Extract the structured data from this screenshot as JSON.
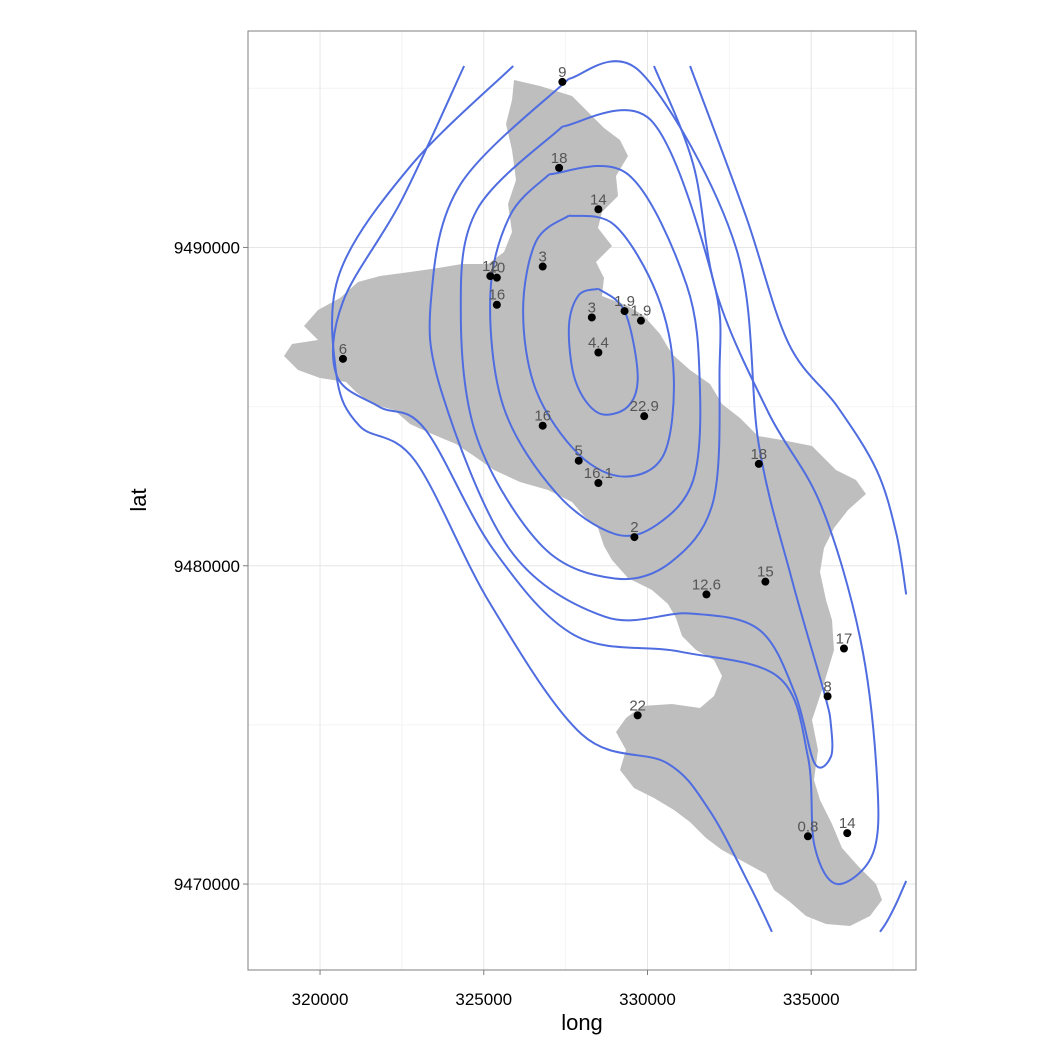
{
  "chart_data": {
    "type": "scatter",
    "title": "",
    "xlabel": "long",
    "ylabel": "lat",
    "xlim": [
      317800,
      338200
    ],
    "ylim": [
      9467300,
      9496800
    ],
    "x_ticks": [
      320000,
      325000,
      330000,
      335000
    ],
    "x_tick_labels": [
      "320000",
      "325000",
      "330000",
      "335000"
    ],
    "y_ticks": [
      9470000,
      9480000,
      9490000
    ],
    "y_tick_labels": [
      "9470000",
      "9480000",
      "9490000"
    ],
    "grid": true,
    "background": "white",
    "colors": {
      "land": "#bebebe",
      "contour": "#4f6de0",
      "point": "#000000",
      "label": "#555555"
    },
    "points": [
      {
        "x": 327400,
        "y": 9495200,
        "label": "9"
      },
      {
        "x": 327300,
        "y": 9492500,
        "label": "18"
      },
      {
        "x": 328500,
        "y": 9491200,
        "label": "14"
      },
      {
        "x": 325200,
        "y": 9489100,
        "label": "12"
      },
      {
        "x": 325400,
        "y": 9489050,
        "label": "10"
      },
      {
        "x": 326800,
        "y": 9489400,
        "label": "3"
      },
      {
        "x": 325400,
        "y": 9488200,
        "label": "16"
      },
      {
        "x": 328300,
        "y": 9487800,
        "label": "3"
      },
      {
        "x": 329300,
        "y": 9488000,
        "label": "1.9"
      },
      {
        "x": 329800,
        "y": 9487700,
        "label": "1.9"
      },
      {
        "x": 328500,
        "y": 9486700,
        "label": "4.4"
      },
      {
        "x": 320700,
        "y": 9486500,
        "label": "6"
      },
      {
        "x": 329900,
        "y": 9484700,
        "label": "22.9"
      },
      {
        "x": 326800,
        "y": 9484400,
        "label": "16"
      },
      {
        "x": 327900,
        "y": 9483300,
        "label": "5"
      },
      {
        "x": 328500,
        "y": 9482600,
        "label": "16.1"
      },
      {
        "x": 333400,
        "y": 9483200,
        "label": "18"
      },
      {
        "x": 329600,
        "y": 9480900,
        "label": "2"
      },
      {
        "x": 333600,
        "y": 9479500,
        "label": "15"
      },
      {
        "x": 331800,
        "y": 9479100,
        "label": "12.6"
      },
      {
        "x": 336000,
        "y": 9477400,
        "label": "17"
      },
      {
        "x": 335500,
        "y": 9475900,
        "label": "8"
      },
      {
        "x": 329700,
        "y": 9475300,
        "label": "22"
      },
      {
        "x": 334900,
        "y": 9471500,
        "label": "0.8"
      },
      {
        "x": 336100,
        "y": 9471600,
        "label": "14"
      }
    ],
    "contours": [
      [
        [
          328500,
          9488700
        ],
        [
          329300,
          9488000
        ],
        [
          329700,
          9486000
        ],
        [
          329400,
          9485000
        ],
        [
          328500,
          9484800
        ],
        [
          327800,
          9485800
        ],
        [
          327600,
          9487500
        ],
        [
          327900,
          9488500
        ],
        [
          328500,
          9488700
        ]
      ],
      [
        [
          327600,
          9491000
        ],
        [
          329000,
          9490700
        ],
        [
          330300,
          9488500
        ],
        [
          330800,
          9486000
        ],
        [
          330500,
          9483500
        ],
        [
          329300,
          9482800
        ],
        [
          327900,
          9483500
        ],
        [
          326600,
          9485500
        ],
        [
          326200,
          9488000
        ],
        [
          326600,
          9490200
        ],
        [
          327600,
          9491000
        ]
      ],
      [
        [
          327000,
          9492300
        ],
        [
          329400,
          9492300
        ],
        [
          331200,
          9488800
        ],
        [
          331600,
          9485600
        ],
        [
          331400,
          9482700
        ],
        [
          330300,
          9481300
        ],
        [
          329000,
          9481000
        ],
        [
          327200,
          9482300
        ],
        [
          325600,
          9485000
        ],
        [
          325200,
          9488500
        ],
        [
          325800,
          9491000
        ],
        [
          327000,
          9492300
        ]
      ],
      [
        [
          327400,
          9493800
        ],
        [
          330100,
          9494000
        ],
        [
          332000,
          9489000
        ],
        [
          332200,
          9486000
        ],
        [
          332000,
          9482000
        ],
        [
          330700,
          9480100
        ],
        [
          329000,
          9479600
        ],
        [
          326800,
          9480600
        ],
        [
          324800,
          9484000
        ],
        [
          324300,
          9488000
        ],
        [
          324800,
          9491200
        ],
        [
          327400,
          9493800
        ]
      ],
      [
        [
          327600,
          9495300
        ],
        [
          329800,
          9495500
        ],
        [
          332700,
          9490000
        ],
        [
          333400,
          9483800
        ],
        [
          334400,
          9479600
        ],
        [
          335400,
          9476000
        ],
        [
          335600,
          9475000
        ],
        [
          335600,
          9474000
        ],
        [
          335100,
          9473800
        ],
        [
          334500,
          9476000
        ],
        [
          333400,
          9478000
        ],
        [
          331300,
          9478500
        ],
        [
          328700,
          9478400
        ],
        [
          325800,
          9480500
        ],
        [
          323700,
          9485500
        ],
        [
          323400,
          9488500
        ],
        [
          324300,
          9492000
        ],
        [
          327600,
          9495300
        ]
      ],
      [
        [
          324400,
          9495700
        ],
        [
          322500,
          9491500
        ],
        [
          320700,
          9488300
        ],
        [
          320500,
          9486000
        ],
        [
          321800,
          9485000
        ],
        [
          323200,
          9484300
        ],
        [
          325300,
          9480500
        ],
        [
          327800,
          9477800
        ],
        [
          331000,
          9477300
        ],
        [
          334000,
          9476500
        ],
        [
          334900,
          9474000
        ],
        [
          335100,
          9471200
        ],
        [
          335800,
          9470000
        ],
        [
          336900,
          9471000
        ],
        [
          337000,
          9473500
        ],
        [
          336500,
          9477700
        ],
        [
          335300,
          9481900
        ],
        [
          333700,
          9484800
        ],
        [
          332100,
          9488600
        ],
        [
          331400,
          9492600
        ],
        [
          330200,
          9495700
        ]
      ],
      [
        [
          325900,
          9495700
        ],
        [
          322800,
          9492600
        ],
        [
          320600,
          9489200
        ],
        [
          320500,
          9486000
        ],
        [
          321200,
          9484400
        ],
        [
          322900,
          9483300
        ],
        [
          325200,
          9478800
        ],
        [
          328000,
          9474700
        ],
        [
          330600,
          9473800
        ],
        [
          331900,
          9472300
        ],
        [
          333100,
          9470000
        ],
        [
          333800,
          9468500
        ]
      ],
      [
        [
          331300,
          9495700
        ],
        [
          333000,
          9491000
        ],
        [
          334300,
          9487000
        ],
        [
          335800,
          9485000
        ],
        [
          337000,
          9483000
        ],
        [
          337600,
          9481000
        ],
        [
          337900,
          9479100
        ]
      ],
      [
        [
          337900,
          9470100
        ],
        [
          337600,
          9469400
        ],
        [
          337300,
          9468800
        ],
        [
          337100,
          9468500
        ]
      ]
    ]
  }
}
